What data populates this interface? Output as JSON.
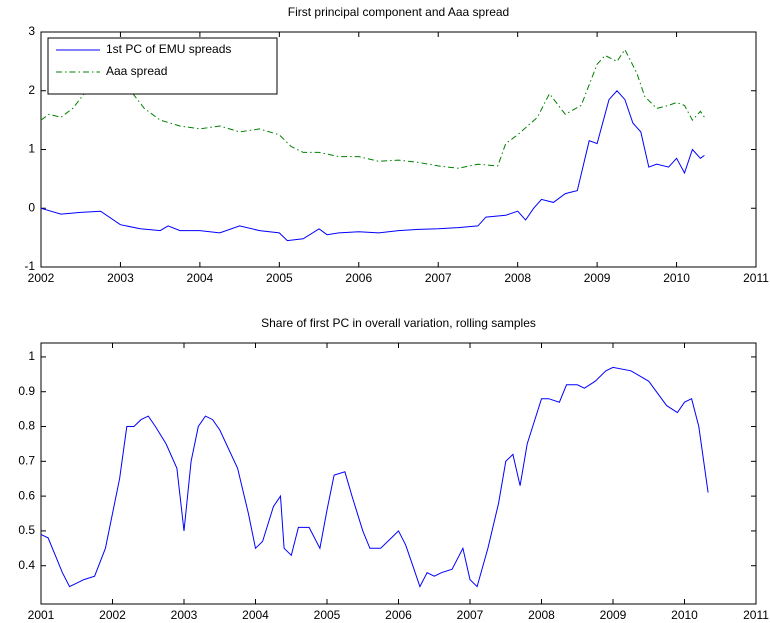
{
  "chart_data": [
    {
      "type": "line",
      "title": "First principal component and Aaa spread",
      "legend": "upper left",
      "xlim": [
        2002,
        2011
      ],
      "xticks": [
        2002,
        2003,
        2004,
        2005,
        2006,
        2007,
        2008,
        2009,
        2010,
        2011
      ],
      "ylim": [
        -1,
        3
      ],
      "yticks": [
        -1,
        0,
        1,
        2,
        3
      ],
      "series": [
        {
          "name": "1st PC of EMU spreads",
          "color": "#0000ff",
          "linestyle": "solid",
          "x": [
            2002.0,
            2002.25,
            2002.5,
            2002.75,
            2003.0,
            2003.25,
            2003.5,
            2003.6,
            2003.75,
            2004.0,
            2004.25,
            2004.5,
            2004.75,
            2005.0,
            2005.1,
            2005.3,
            2005.5,
            2005.6,
            2005.75,
            2006.0,
            2006.25,
            2006.5,
            2006.75,
            2007.0,
            2007.25,
            2007.5,
            2007.6,
            2007.85,
            2008.0,
            2008.1,
            2008.2,
            2008.3,
            2008.45,
            2008.6,
            2008.75,
            2008.9,
            2009.0,
            2009.15,
            2009.25,
            2009.35,
            2009.45,
            2009.55,
            2009.65,
            2009.75,
            2009.9,
            2010.0,
            2010.1,
            2010.2,
            2010.3,
            2010.35
          ],
          "values": [
            0.0,
            -0.1,
            -0.07,
            -0.05,
            -0.28,
            -0.35,
            -0.38,
            -0.3,
            -0.38,
            -0.38,
            -0.42,
            -0.3,
            -0.38,
            -0.42,
            -0.55,
            -0.52,
            -0.35,
            -0.45,
            -0.42,
            -0.4,
            -0.42,
            -0.38,
            -0.36,
            -0.35,
            -0.33,
            -0.3,
            -0.15,
            -0.12,
            -0.05,
            -0.2,
            0.0,
            0.15,
            0.1,
            0.25,
            0.3,
            1.15,
            1.1,
            1.85,
            2.0,
            1.85,
            1.45,
            1.3,
            0.7,
            0.75,
            0.7,
            0.85,
            0.6,
            1.0,
            0.85,
            0.9
          ]
        },
        {
          "name": "Aaa spread",
          "color": "#008000",
          "linestyle": "dashdot",
          "x": [
            2002.0,
            2002.1,
            2002.25,
            2002.4,
            2002.6,
            2002.75,
            2003.0,
            2003.1,
            2003.3,
            2003.5,
            2003.75,
            2004.0,
            2004.25,
            2004.5,
            2004.75,
            2005.0,
            2005.15,
            2005.3,
            2005.5,
            2005.75,
            2006.0,
            2006.25,
            2006.5,
            2006.75,
            2007.0,
            2007.25,
            2007.5,
            2007.75,
            2007.85,
            2008.0,
            2008.25,
            2008.4,
            2008.6,
            2008.8,
            2009.0,
            2009.1,
            2009.25,
            2009.35,
            2009.5,
            2009.6,
            2009.75,
            2009.9,
            2010.0,
            2010.1,
            2010.2,
            2010.3,
            2010.35
          ],
          "values": [
            1.5,
            1.6,
            1.55,
            1.7,
            2.05,
            2.3,
            2.2,
            2.05,
            1.7,
            1.5,
            1.4,
            1.35,
            1.4,
            1.3,
            1.35,
            1.25,
            1.05,
            0.95,
            0.95,
            0.88,
            0.88,
            0.8,
            0.82,
            0.78,
            0.72,
            0.68,
            0.75,
            0.72,
            1.1,
            1.25,
            1.55,
            1.95,
            1.6,
            1.75,
            2.45,
            2.6,
            2.5,
            2.7,
            2.3,
            1.9,
            1.7,
            1.75,
            1.8,
            1.75,
            1.5,
            1.65,
            1.55
          ]
        }
      ]
    },
    {
      "type": "line",
      "title": "Share of first PC in overall variation, rolling samples",
      "xlim": [
        2001,
        2011
      ],
      "xticks": [
        2001,
        2002,
        2003,
        2004,
        2005,
        2006,
        2007,
        2008,
        2009,
        2010,
        2011
      ],
      "ylim": [
        0.29,
        1.04
      ],
      "yticks": [
        0.4,
        0.5,
        0.6,
        0.7,
        0.8,
        0.9,
        1
      ],
      "series": [
        {
          "color": "#0000ff",
          "linestyle": "solid",
          "x": [
            2001.0,
            2001.1,
            2001.2,
            2001.3,
            2001.4,
            2001.5,
            2001.6,
            2001.75,
            2001.9,
            2002.0,
            2002.1,
            2002.2,
            2002.3,
            2002.4,
            2002.5,
            2002.6,
            2002.75,
            2002.9,
            2003.0,
            2003.1,
            2003.2,
            2003.3,
            2003.4,
            2003.5,
            2003.75,
            2003.9,
            2004.0,
            2004.1,
            2004.25,
            2004.35,
            2004.4,
            2004.5,
            2004.6,
            2004.75,
            2004.9,
            2005.0,
            2005.1,
            2005.25,
            2005.35,
            2005.5,
            2005.6,
            2005.75,
            2005.9,
            2006.0,
            2006.1,
            2006.2,
            2006.3,
            2006.4,
            2006.5,
            2006.6,
            2006.75,
            2006.9,
            2007.0,
            2007.1,
            2007.25,
            2007.4,
            2007.5,
            2007.6,
            2007.7,
            2007.8,
            2008.0,
            2008.1,
            2008.25,
            2008.35,
            2008.5,
            2008.6,
            2008.75,
            2008.9,
            2009.0,
            2009.25,
            2009.5,
            2009.75,
            2009.9,
            2010.0,
            2010.1,
            2010.2,
            2010.33
          ],
          "values": [
            0.49,
            0.48,
            0.43,
            0.38,
            0.34,
            0.35,
            0.36,
            0.37,
            0.45,
            0.55,
            0.65,
            0.8,
            0.8,
            0.82,
            0.83,
            0.8,
            0.75,
            0.68,
            0.5,
            0.7,
            0.8,
            0.83,
            0.82,
            0.79,
            0.68,
            0.55,
            0.45,
            0.47,
            0.57,
            0.6,
            0.45,
            0.43,
            0.51,
            0.51,
            0.45,
            0.56,
            0.66,
            0.67,
            0.6,
            0.5,
            0.45,
            0.45,
            0.48,
            0.5,
            0.46,
            0.4,
            0.34,
            0.38,
            0.37,
            0.38,
            0.39,
            0.45,
            0.36,
            0.34,
            0.45,
            0.58,
            0.7,
            0.72,
            0.63,
            0.75,
            0.88,
            0.88,
            0.87,
            0.92,
            0.92,
            0.91,
            0.93,
            0.96,
            0.97,
            0.96,
            0.93,
            0.86,
            0.84,
            0.87,
            0.88,
            0.8,
            0.61
          ]
        }
      ]
    }
  ]
}
